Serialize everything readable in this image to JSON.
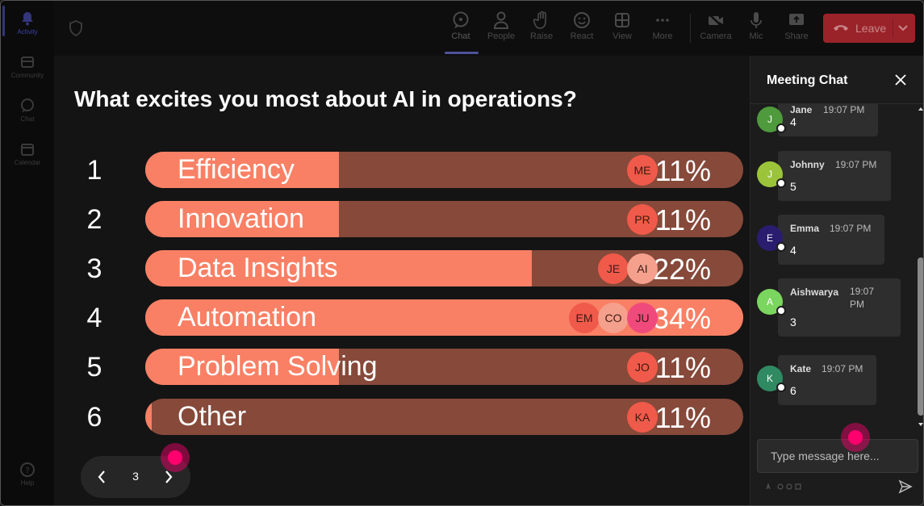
{
  "rail": {
    "items": [
      {
        "label": "Activity",
        "icon": "bell-icon",
        "active": true
      },
      {
        "label": "Community",
        "icon": "community-icon"
      },
      {
        "label": "Chat",
        "icon": "chat-icon"
      },
      {
        "label": "Calendar",
        "icon": "calendar-icon"
      }
    ],
    "help": {
      "label": "Help",
      "icon": "help-icon"
    }
  },
  "toolbar": {
    "buttons": [
      {
        "label": "Chat",
        "icon": "chat-icon",
        "active": true
      },
      {
        "label": "People",
        "icon": "people-icon"
      },
      {
        "label": "Raise",
        "icon": "hand-icon"
      },
      {
        "label": "React",
        "icon": "smiley-icon"
      },
      {
        "label": "View",
        "icon": "grid-icon"
      },
      {
        "label": "More",
        "icon": "more-icon"
      },
      {
        "label": "Camera",
        "icon": "camera-off-icon"
      },
      {
        "label": "Mic",
        "icon": "mic-icon"
      },
      {
        "label": "Share",
        "icon": "share-icon"
      }
    ],
    "leave_label": "Leave"
  },
  "poll": {
    "question": "What excites you most about AI in operations?",
    "options": [
      {
        "num": "1",
        "label": "Efficiency",
        "percent": 11,
        "pct_label": "11%",
        "voters": [
          "ME"
        ]
      },
      {
        "num": "2",
        "label": "Innovation",
        "percent": 11,
        "pct_label": "11%",
        "voters": [
          "PR"
        ]
      },
      {
        "num": "3",
        "label": "Data Insights",
        "percent": 22,
        "pct_label": "22%",
        "voters": [
          "JE",
          "AI"
        ]
      },
      {
        "num": "4",
        "label": "Automation",
        "percent": 34,
        "pct_label": "34%",
        "voters": [
          "EM",
          "CO",
          "JU"
        ]
      },
      {
        "num": "5",
        "label": "Problem Solving",
        "percent": 11,
        "pct_label": "11%",
        "voters": [
          "JO"
        ]
      },
      {
        "num": "6",
        "label": "Other",
        "percent": 11,
        "pct_label": "11%",
        "voters": [
          "KA"
        ]
      }
    ],
    "page": "3"
  },
  "chat": {
    "title": "Meeting Chat",
    "messages": [
      {
        "name": "Jane",
        "initial": "J",
        "time": "19:07 PM",
        "text": "4",
        "color": "#4e9a3c"
      },
      {
        "name": "Johnny",
        "initial": "J",
        "time": "19:07 PM",
        "text": "5",
        "color": "#9bc43a"
      },
      {
        "name": "Emma",
        "initial": "E",
        "time": "19:07 PM",
        "text": "4",
        "color": "#2a1c6e"
      },
      {
        "name": "Aishwarya",
        "initial": "A",
        "time": "19:07 PM",
        "text": "3",
        "color": "#7ad65e"
      },
      {
        "name": "Kate",
        "initial": "K",
        "time": "19:07 PM",
        "text": "6",
        "color": "#2f8a62"
      }
    ],
    "input_placeholder": "Type message here..."
  },
  "colors": {
    "bar_fill": "#f98065",
    "bar_track": "#86493a",
    "leave": "#9a2329",
    "cursor": "#ff006e"
  }
}
